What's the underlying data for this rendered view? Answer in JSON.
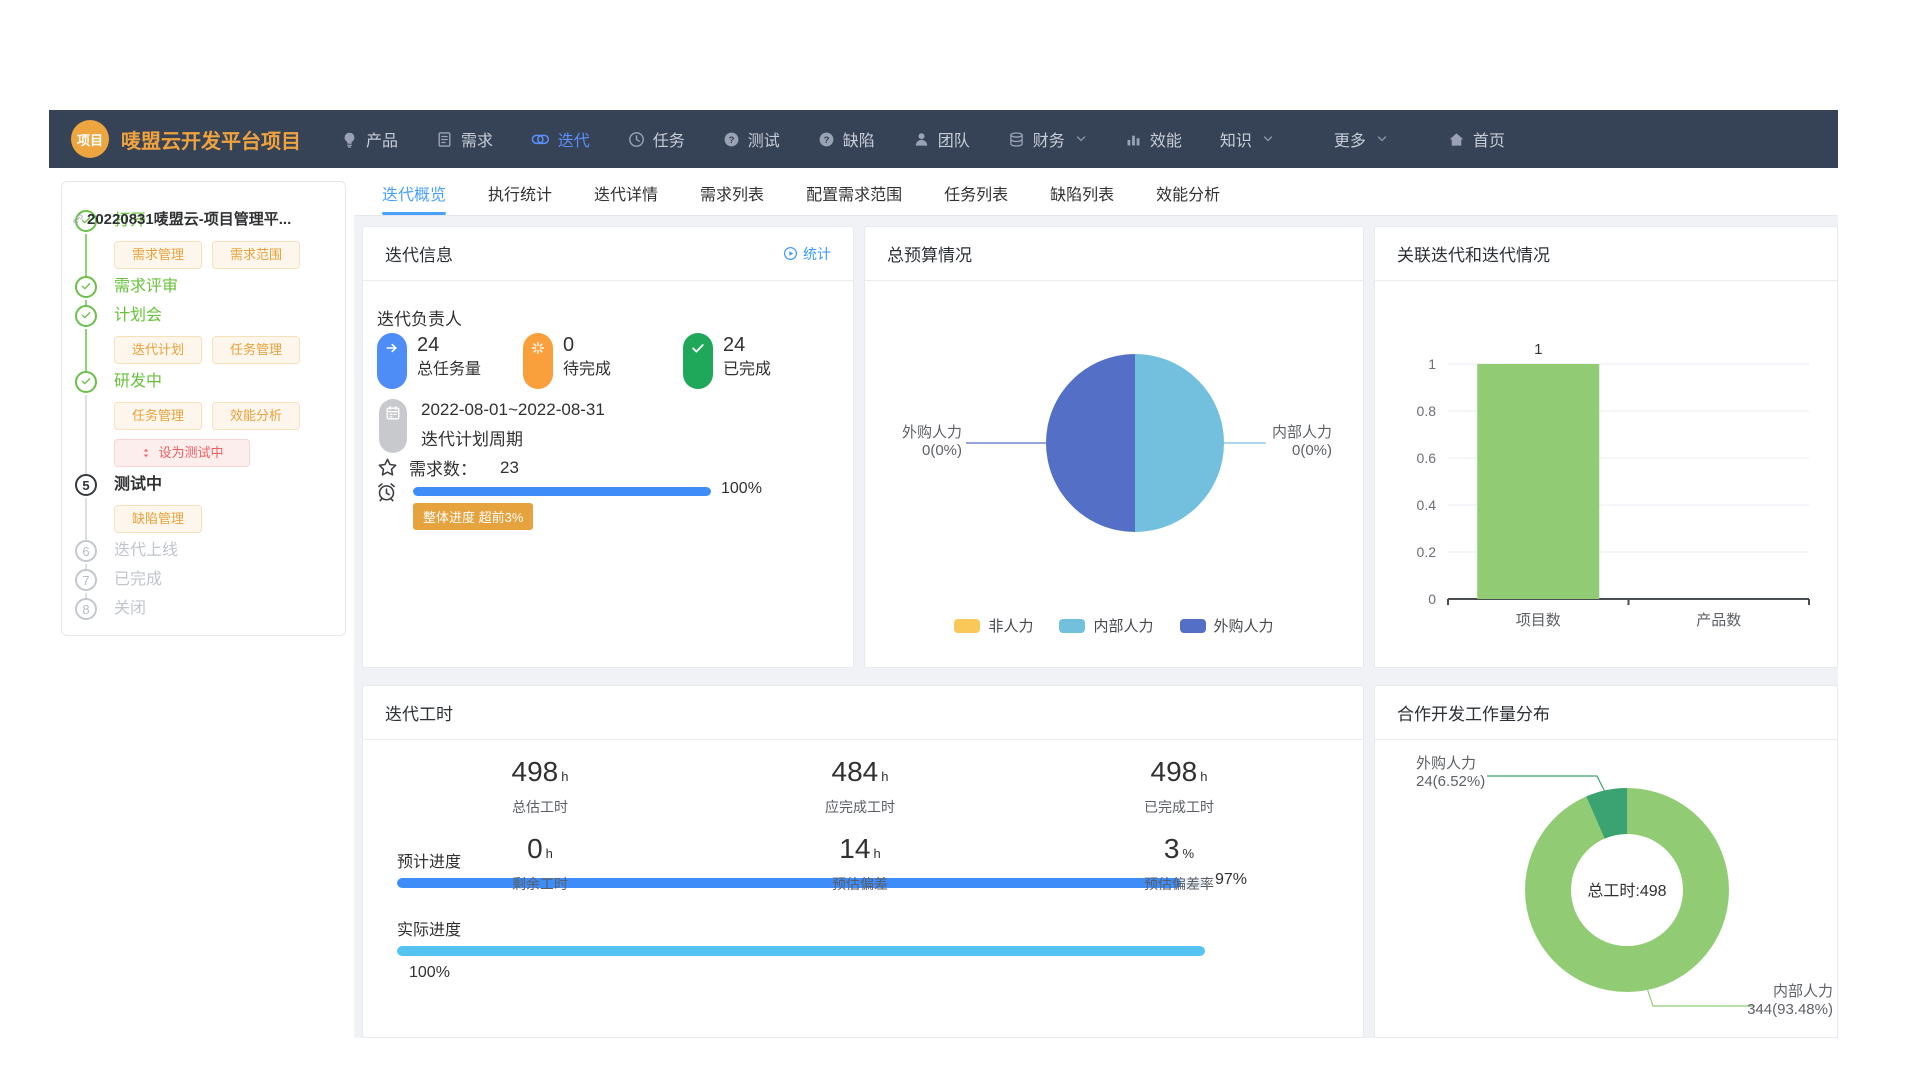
{
  "colors": {
    "navbar_bg": "#364357",
    "brand_orange": "#f0a33c",
    "nav_active_blue": "#5b8ff9",
    "tab_active_blue": "#4aa1fd",
    "success_green": "#67c23a",
    "warning_orange": "#e6a23c",
    "danger_red": "#ef5e5e",
    "progress_blue": "#3e8cf7",
    "progress_cyan": "#55c3f0"
  },
  "navbar": {
    "logo_badge": "项目",
    "app_title": "唛盟云开发平台项目",
    "items": [
      {
        "label": "产品",
        "icon": "bulb-icon"
      },
      {
        "label": "需求",
        "icon": "document-icon"
      },
      {
        "label": "迭代",
        "icon": "iteration-icon",
        "active": true
      },
      {
        "label": "任务",
        "icon": "clock-icon"
      },
      {
        "label": "测试",
        "icon": "question-circle-icon"
      },
      {
        "label": "缺陷",
        "icon": "question-circle-icon"
      },
      {
        "label": "团队",
        "icon": "user-icon"
      },
      {
        "label": "财务",
        "icon": "database-icon",
        "dropdown": true
      },
      {
        "label": "效能",
        "icon": "bar-chart-icon"
      },
      {
        "label": "知识",
        "dropdown": true
      },
      {
        "label": "更多",
        "dropdown": true,
        "spaced": true
      },
      {
        "label": "首页",
        "icon": "home-icon",
        "spaced": true
      }
    ]
  },
  "sidebar": {
    "project_title": "20220831唛盟云-项目管理平...",
    "steps": [
      {
        "label": "打开",
        "state": "done",
        "buttons": [
          "需求管理",
          "需求范围"
        ]
      },
      {
        "label": "需求评审",
        "state": "done",
        "buttons": []
      },
      {
        "label": "计划会",
        "state": "done",
        "buttons": [
          "迭代计划",
          "任务管理"
        ]
      },
      {
        "label": "研发中",
        "state": "done",
        "buttons": [
          "任务管理",
          "效能分析"
        ],
        "action": "设为测试中"
      },
      {
        "label": "测试中",
        "state": "current",
        "num": "5",
        "buttons": [
          "缺陷管理"
        ]
      },
      {
        "label": "迭代上线",
        "state": "pending",
        "num": "6",
        "buttons": []
      },
      {
        "label": "已完成",
        "state": "pending",
        "num": "7",
        "buttons": []
      },
      {
        "label": "关闭",
        "state": "pending",
        "num": "8",
        "buttons": []
      }
    ]
  },
  "tabs": [
    {
      "label": "迭代概览",
      "active": true
    },
    {
      "label": "执行统计"
    },
    {
      "label": "迭代详情"
    },
    {
      "label": "需求列表"
    },
    {
      "label": "配置需求范围"
    },
    {
      "label": "任务列表"
    },
    {
      "label": "缺陷列表"
    },
    {
      "label": "效能分析"
    }
  ],
  "iteration_info": {
    "title": "迭代信息",
    "stats_link": "统计",
    "owner_label": "迭代负责人",
    "stats": [
      {
        "value": "24",
        "label": "总任务量",
        "color": "#4e8df6",
        "icon": "arrow-right-icon"
      },
      {
        "value": "0",
        "label": "待完成",
        "color": "#f99f3c",
        "icon": "spinner-icon"
      },
      {
        "value": "24",
        "label": "已完成",
        "color": "#1fa75a",
        "icon": "check-icon"
      }
    ],
    "period_value": "2022-08-01~2022-08-31",
    "period_label": "迭代计划周期",
    "requirements_label": "需求数：",
    "requirements_value": "23",
    "progress_pct": 100,
    "progress_text": "100%",
    "progress_badge": "整体进度 超前3%"
  },
  "budget_card": {
    "title": "总预算情况"
  },
  "relation_card": {
    "title": "关联迭代和迭代情况"
  },
  "hours_card": {
    "title": "迭代工时",
    "columns": [
      {
        "top": {
          "value": "498",
          "unit": "h",
          "label": "总估工时"
        },
        "bottom": {
          "value": "0",
          "unit": "h",
          "label": "剩余工时"
        }
      },
      {
        "top": {
          "value": "484",
          "unit": "h",
          "label": "应完成工时"
        },
        "bottom": {
          "value": "14",
          "unit": "h",
          "label": "预估偏差"
        }
      },
      {
        "top": {
          "value": "498",
          "unit": "h",
          "label": "已完成工时"
        },
        "bottom": {
          "value": "3",
          "unit": "%",
          "label": "预估偏差率"
        }
      }
    ],
    "progress": {
      "planned_label": "预计进度",
      "planned_pct": 97,
      "planned_text": "97%",
      "actual_label": "实际进度",
      "actual_pct": 100,
      "actual_text": "100%"
    }
  },
  "distribution_card": {
    "title": "合作开发工作量分布"
  },
  "chart_data": [
    {
      "type": "pie",
      "title": "总预算情况",
      "slices": [
        {
          "name": "内部人力",
          "value": 0,
          "label": "0(0%)",
          "display_fraction": 0.5,
          "color": "#73c0de",
          "label_side": "right"
        },
        {
          "name": "外购人力",
          "value": 0,
          "label": "0(0%)",
          "display_fraction": 0.5,
          "color": "#5470c6",
          "label_side": "left"
        }
      ],
      "legend": [
        {
          "name": "非人力",
          "color": "#fac858"
        },
        {
          "name": "内部人力",
          "color": "#73c0de"
        },
        {
          "name": "外购人力",
          "color": "#5470c6"
        }
      ],
      "legend_position": "bottom"
    },
    {
      "type": "bar",
      "title": "关联迭代和迭代情况",
      "categories": [
        "项目数",
        "产品数"
      ],
      "values": [
        1,
        0
      ],
      "value_labels": [
        "1",
        ""
      ],
      "bar_color": "#91cc75",
      "ylim": [
        0,
        1
      ],
      "ytick_labels": [
        "0",
        "0.2",
        "0.4",
        "0.6",
        "0.8",
        "1"
      ],
      "grid": true
    },
    {
      "type": "donut",
      "title": "合作开发工作量分布",
      "center_label": "总工时:498",
      "slices": [
        {
          "name": "内部人力",
          "value": 344,
          "label": "344(93.48%)",
          "fraction": 0.9348,
          "color": "#91cc75",
          "label_side": "bottom-right"
        },
        {
          "name": "外购人力",
          "value": 24,
          "label": "24(6.52%)",
          "fraction": 0.0652,
          "color": "#3ba272",
          "label_side": "top-left"
        }
      ]
    }
  ]
}
